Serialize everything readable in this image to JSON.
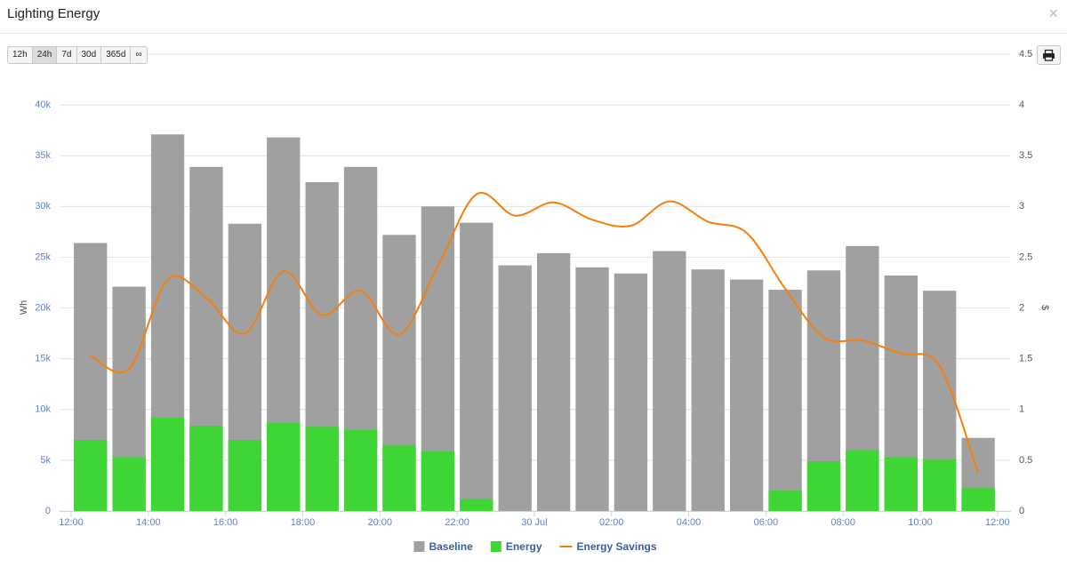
{
  "header": {
    "title": "Lighting Energy",
    "close": "×"
  },
  "range_buttons": [
    "12h",
    "24h",
    "7d",
    "30d",
    "365d",
    "∞"
  ],
  "active_button": "24h",
  "chart_data": {
    "type": "bar",
    "ylabel": "Wh",
    "y2label": "$",
    "x": [
      0.5,
      1.5,
      2.5,
      3.5,
      4.5,
      5.5,
      6.5,
      7.5,
      8.5,
      9.5,
      10.5,
      11.5,
      12.5,
      13.5,
      14.5,
      15.5,
      16.5,
      17.5,
      18.5,
      19.5,
      20.5,
      21.5,
      22.5,
      23.5
    ],
    "xlim": [
      -0.3,
      24.35
    ],
    "xticks": [
      {
        "value": 0,
        "label": "12:00"
      },
      {
        "value": 2,
        "label": "14:00"
      },
      {
        "value": 4,
        "label": "16:00"
      },
      {
        "value": 6,
        "label": "18:00"
      },
      {
        "value": 8,
        "label": "20:00"
      },
      {
        "value": 10,
        "label": "22:00"
      },
      {
        "value": 12,
        "label": "30 Jul"
      },
      {
        "value": 14,
        "label": "02:00"
      },
      {
        "value": 16,
        "label": "04:00"
      },
      {
        "value": 18,
        "label": "06:00"
      },
      {
        "value": 20,
        "label": "08:00"
      },
      {
        "value": 22,
        "label": "10:00"
      },
      {
        "value": 24,
        "label": "12:00"
      }
    ],
    "ylim": [
      0,
      45000
    ],
    "yticks": [
      0,
      {
        "value": 5000,
        "label": "5k"
      },
      {
        "value": 10000,
        "label": "10k"
      },
      {
        "value": 15000,
        "label": "15k"
      },
      {
        "value": 20000,
        "label": "20k"
      },
      {
        "value": 25000,
        "label": "25k"
      },
      {
        "value": 30000,
        "label": "30k"
      },
      {
        "value": 35000,
        "label": "35k"
      },
      {
        "value": 40000,
        "label": "40k"
      }
    ],
    "y2lim": [
      0,
      4.5
    ],
    "y2ticks": [
      0,
      0.5,
      1,
      1.5,
      2,
      2.5,
      3,
      3.5,
      4,
      4.5
    ],
    "grid": true,
    "series": [
      {
        "name": "Baseline",
        "type": "bar",
        "color": "#a0a0a0",
        "values": [
          26400,
          22100,
          37100,
          33900,
          28300,
          36800,
          32400,
          33900,
          27200,
          30000,
          28400,
          24200,
          25400,
          24000,
          23400,
          25600,
          23800,
          22800,
          21800,
          23700,
          26100,
          23200,
          21700,
          7200
        ]
      },
      {
        "name": "Energy",
        "type": "bar",
        "color": "#3fd534",
        "values": [
          7000,
          5300,
          9200,
          8400,
          7000,
          8700,
          8300,
          8000,
          6500,
          5900,
          1200,
          0,
          0,
          0,
          0,
          0,
          0,
          0,
          2000,
          4900,
          6000,
          5300,
          5100,
          2300
        ]
      },
      {
        "name": "Energy Savings",
        "type": "line",
        "axis": "y2",
        "color": "#f57f0a",
        "values": [
          1.53,
          1.4,
          2.28,
          2.1,
          1.75,
          2.36,
          1.93,
          2.17,
          1.74,
          2.41,
          3.12,
          2.91,
          3.04,
          2.87,
          2.81,
          3.05,
          2.85,
          2.74,
          2.19,
          1.71,
          1.68,
          1.55,
          1.43,
          0.37
        ]
      }
    ]
  }
}
